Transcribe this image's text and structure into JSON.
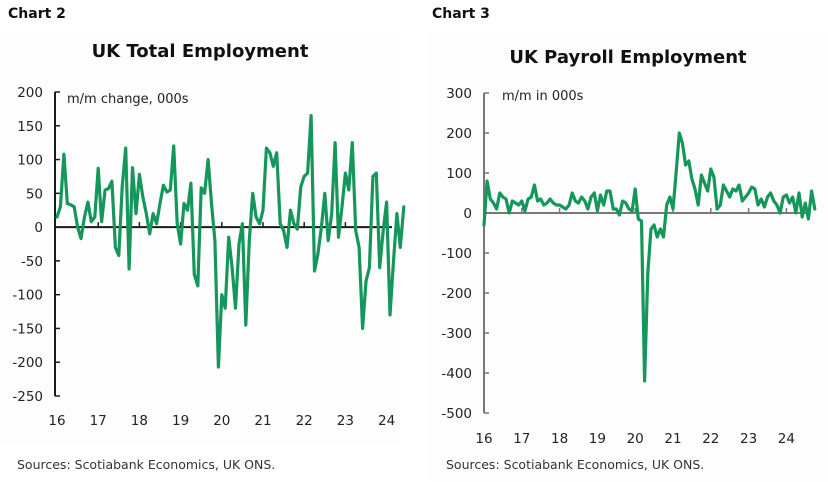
{
  "chart_data": [
    {
      "id": "chart2",
      "type": "line",
      "label": "Chart 2",
      "title": "UK Total Employment",
      "ylabel": "m/m change, 000s",
      "xlabel": "",
      "ylim": [
        -250,
        200
      ],
      "yticks": [
        200,
        150,
        100,
        50,
        0,
        -50,
        -100,
        -150,
        -200,
        -250
      ],
      "xticks": [
        "16",
        "17",
        "18",
        "19",
        "20",
        "21",
        "22",
        "23",
        "24"
      ],
      "xrange": [
        2016.0,
        2024.5
      ],
      "grid": false,
      "legend": "none",
      "line_color": "#15965a",
      "source": "Sources: Scotiabank Economics, UK ONS.",
      "series": [
        {
          "name": "UK Total Employment m/m change",
          "start": 2016.0,
          "step_months": 1,
          "values": [
            15,
            30,
            108,
            35,
            33,
            30,
            0,
            -17,
            15,
            37,
            8,
            15,
            87,
            8,
            55,
            57,
            68,
            -30,
            -42,
            60,
            117,
            -62,
            88,
            20,
            78,
            45,
            20,
            -10,
            20,
            5,
            35,
            62,
            52,
            55,
            120,
            5,
            -25,
            35,
            25,
            65,
            -70,
            -87,
            58,
            50,
            100,
            35,
            -20,
            -207,
            -100,
            -120,
            -15,
            -60,
            -120,
            -25,
            5,
            -145,
            -20,
            50,
            15,
            5,
            25,
            117,
            110,
            90,
            110,
            5,
            -5,
            -30,
            25,
            5,
            -3,
            60,
            75,
            80,
            165,
            -65,
            -40,
            0,
            50,
            -20,
            20,
            125,
            -15,
            30,
            80,
            55,
            125,
            -5,
            -30,
            -150,
            -80,
            -60,
            75,
            80,
            -60,
            -5,
            37,
            -130,
            -50,
            20,
            -30,
            30
          ]
        }
      ]
    },
    {
      "id": "chart3",
      "type": "line",
      "label": "Chart 3",
      "title": "UK Payroll Employment",
      "ylabel": "m/m in 000s",
      "xlabel": "",
      "ylim": [
        -500,
        300
      ],
      "yticks": [
        300,
        200,
        100,
        0,
        -100,
        -200,
        -300,
        -400,
        -500
      ],
      "xticks": [
        "16",
        "17",
        "18",
        "19",
        "20",
        "21",
        "22",
        "23",
        "24"
      ],
      "xrange": [
        2016.0,
        2024.5
      ],
      "grid": false,
      "legend": "none",
      "line_color": "#15965a",
      "source": "Sources: Scotiabank Economics, UK ONS.",
      "series": [
        {
          "name": "UK Payroll Employment m/m change",
          "start": 2016.0,
          "step_months": 1,
          "values": [
            -30,
            80,
            35,
            25,
            10,
            50,
            40,
            35,
            0,
            30,
            25,
            20,
            30,
            5,
            35,
            40,
            70,
            30,
            35,
            20,
            25,
            35,
            25,
            20,
            20,
            15,
            10,
            20,
            50,
            30,
            25,
            40,
            30,
            10,
            40,
            50,
            5,
            45,
            20,
            55,
            55,
            10,
            10,
            -5,
            30,
            25,
            10,
            5,
            60,
            -15,
            -20,
            -420,
            -150,
            -40,
            -30,
            -60,
            -40,
            -60,
            20,
            40,
            10,
            100,
            200,
            175,
            120,
            130,
            85,
            60,
            20,
            95,
            75,
            55,
            110,
            90,
            10,
            20,
            70,
            55,
            40,
            60,
            55,
            70,
            30,
            40,
            50,
            65,
            60,
            20,
            35,
            15,
            40,
            50,
            30,
            20,
            0,
            40,
            45,
            25,
            40,
            0,
            50,
            -10,
            25,
            -15,
            55,
            10
          ]
        }
      ]
    }
  ],
  "charts": [
    {
      "label": "Chart 2",
      "title": "UK Total Employment",
      "unit": "m/m change, 000s",
      "yticks": [
        "200",
        "150",
        "100",
        "50",
        "0",
        "-50",
        "-100",
        "-150",
        "-200",
        "-250"
      ],
      "xticks": [
        "16",
        "17",
        "18",
        "19",
        "20",
        "21",
        "22",
        "23",
        "24"
      ],
      "source": "Sources: Scotiabank Economics, UK ONS."
    },
    {
      "label": "Chart 3",
      "title": "UK Payroll Employment",
      "unit": "m/m in 000s",
      "yticks": [
        "300",
        "200",
        "100",
        "0",
        "-100",
        "-200",
        "-300",
        "-400",
        "-500"
      ],
      "xticks": [
        "16",
        "17",
        "18",
        "19",
        "20",
        "21",
        "22",
        "23",
        "24"
      ],
      "source": "Sources: Scotiabank Economics, UK ONS."
    }
  ],
  "colors": {
    "line": "#15965a",
    "axis": "#222222",
    "axis_light": "#777777"
  }
}
